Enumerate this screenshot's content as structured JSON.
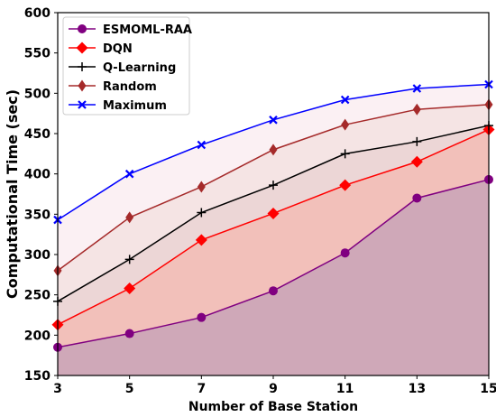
{
  "chart_data": {
    "type": "line",
    "xlabel": "Number of Base Station",
    "ylabel": "Computational Time (sec)",
    "x": [
      3,
      5,
      7,
      9,
      11,
      13,
      15
    ],
    "xlim": [
      3,
      15
    ],
    "ylim": [
      150,
      600
    ],
    "yticks": [
      150,
      200,
      250,
      300,
      350,
      400,
      450,
      500,
      550,
      600
    ],
    "legend_position": "top-left",
    "series": [
      {
        "name": "ESMOML-RAA",
        "color": "#800080",
        "marker": "circle",
        "fill": "#cfa8b8",
        "values": [
          185,
          202,
          222,
          255,
          302,
          370,
          393
        ]
      },
      {
        "name": "DQN",
        "color": "#ff0000",
        "marker": "diamond",
        "fill": "#f2c0ba",
        "values": [
          213,
          258,
          318,
          351,
          386,
          415,
          455
        ]
      },
      {
        "name": "Q-Learning",
        "color": "#000000",
        "marker": "plus",
        "fill": "#ecd6d6",
        "values": [
          242,
          294,
          352,
          386,
          425,
          440,
          460
        ]
      },
      {
        "name": "Random",
        "color": "#a52a2a",
        "marker": "thin-diamond",
        "fill": "#f5e4e4",
        "values": [
          280,
          346,
          384,
          430,
          461,
          480,
          486
        ]
      },
      {
        "name": "Maximum",
        "color": "#0000ff",
        "marker": "x",
        "fill": "#fbf0f3",
        "values": [
          343,
          400,
          436,
          467,
          492,
          506,
          511
        ]
      }
    ]
  }
}
